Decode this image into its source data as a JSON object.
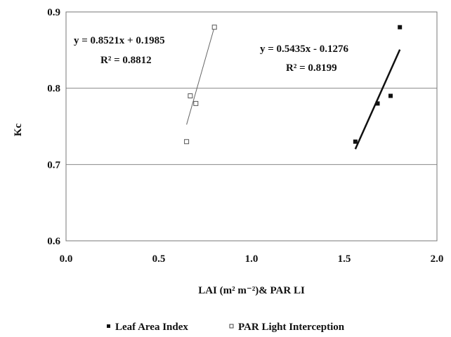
{
  "chart_data": {
    "type": "scatter",
    "xlabel": "LAI (m² m⁻²)& PAR LI",
    "ylabel": "Kc",
    "xlim": [
      0.0,
      2.0
    ],
    "ylim": [
      0.6,
      0.9
    ],
    "x_ticks": [
      "0.0",
      "0.5",
      "1.0",
      "1.5",
      "2.0"
    ],
    "y_ticks": [
      "0.6",
      "0.7",
      "0.8",
      "0.9"
    ],
    "grid": "horizontal",
    "legend_position": "bottom",
    "series": [
      {
        "name": "Leaf Area Index",
        "marker": "filled",
        "color": "#111111",
        "points": [
          {
            "x": 1.56,
            "y": 0.73
          },
          {
            "x": 1.68,
            "y": 0.78
          },
          {
            "x": 1.75,
            "y": 0.79
          },
          {
            "x": 1.8,
            "y": 0.88
          }
        ],
        "trendline": {
          "slope": 0.5435,
          "intercept": -0.1276,
          "x_range": [
            1.56,
            1.8
          ]
        },
        "equation": "y = 0.5435x - 0.1276",
        "r2": "R² = 0.8199"
      },
      {
        "name": "PAR Light Interception",
        "marker": "hollow",
        "color": "#555555",
        "points": [
          {
            "x": 0.65,
            "y": 0.73
          },
          {
            "x": 0.67,
            "y": 0.79
          },
          {
            "x": 0.7,
            "y": 0.78
          },
          {
            "x": 0.8,
            "y": 0.88
          }
        ],
        "trendline": {
          "slope": 0.8521,
          "intercept": 0.1985,
          "x_range": [
            0.65,
            0.8
          ]
        },
        "equation": "y = 0.8521x + 0.1985",
        "r2": "R² = 0.8812"
      }
    ]
  }
}
